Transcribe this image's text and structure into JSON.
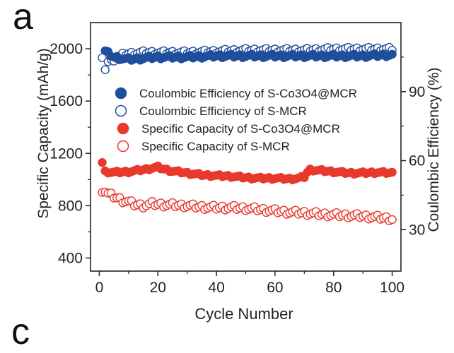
{
  "panel_label": "a",
  "next_panel_label": "c",
  "chart_data": {
    "type": "scatter",
    "xlabel": "Cycle Number",
    "ylabel_left": "Specific Capacity (mAh/g)",
    "ylabel_right": "Coulombic Efficiency (%)",
    "xlim": [
      -3,
      103
    ],
    "ylim_left": [
      300,
      2200
    ],
    "ylim_right": [
      12,
      120
    ],
    "x_ticks": [
      0,
      20,
      40,
      60,
      80,
      100
    ],
    "y_left_ticks": [
      400,
      800,
      1200,
      1600,
      2000
    ],
    "y_right_ticks": [
      30,
      60,
      90
    ],
    "legend_position": "upper-left",
    "series": [
      {
        "name": "Coulombic Efficiency of S-Co3O4@MCR",
        "axis": "right",
        "marker": "filled-circle",
        "color": "#1f4e9c",
        "x": [
          2,
          5,
          10,
          20,
          30,
          40,
          50,
          60,
          70,
          80,
          90,
          100
        ],
        "y": [
          107.5,
          105,
          104,
          105,
          105,
          105.5,
          105.5,
          105.5,
          105.5,
          105.5,
          105.5,
          106
        ]
      },
      {
        "name": "Coulombic Efficiency of S-MCR",
        "axis": "right",
        "marker": "open-circle",
        "color": "#1f4e9c",
        "x": [
          1,
          2,
          3,
          5,
          8,
          10,
          15,
          20,
          30,
          40,
          50,
          60,
          70,
          80,
          90,
          100
        ],
        "y": [
          104,
          100,
          103,
          104,
          106,
          106.5,
          107,
          107,
          107,
          107.5,
          108,
          108,
          108,
          108.5,
          108.5,
          108.5
        ]
      },
      {
        "name": "Specific Capacity of S-Co3O4@MCR",
        "axis": "left",
        "marker": "filled-circle",
        "color": "#e8392d",
        "x": [
          1,
          2,
          5,
          10,
          15,
          20,
          22,
          25,
          30,
          35,
          40,
          45,
          50,
          55,
          60,
          65,
          68,
          70,
          71,
          72,
          75,
          80,
          85,
          90,
          95,
          100
        ],
        "y": [
          1130,
          1060,
          1055,
          1060,
          1075,
          1095,
          1080,
          1065,
          1050,
          1035,
          1030,
          1025,
          1015,
          1010,
          1010,
          1005,
          1010,
          1020,
          1055,
          1075,
          1070,
          1060,
          1050,
          1050,
          1055,
          1050
        ]
      },
      {
        "name": "Specific Capacity of S-MCR",
        "axis": "left",
        "marker": "open-circle",
        "color": "#e8392d",
        "x": [
          1,
          2,
          3,
          4,
          5,
          6,
          8,
          10,
          12,
          15,
          18,
          20,
          25,
          30,
          35,
          40,
          45,
          50,
          55,
          60,
          65,
          70,
          75,
          80,
          85,
          90,
          95,
          100
        ],
        "y": [
          920,
          910,
          890,
          880,
          870,
          860,
          840,
          830,
          810,
          800,
          815,
          810,
          805,
          800,
          790,
          785,
          785,
          780,
          770,
          760,
          750,
          745,
          735,
          730,
          725,
          720,
          710,
          700
        ]
      }
    ]
  }
}
